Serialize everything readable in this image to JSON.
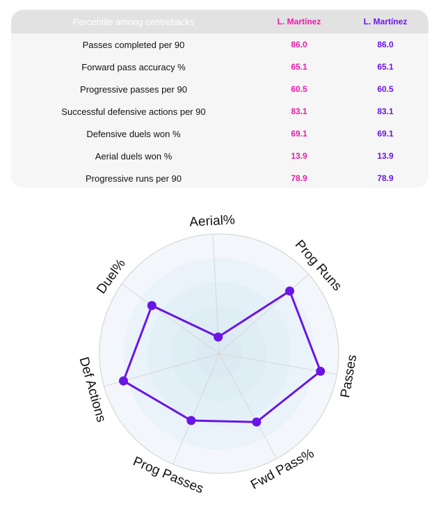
{
  "table": {
    "header_metric": "Percentile among centrebacks",
    "player1": "L. Martínez",
    "player2": "L. Martínez",
    "rows": [
      {
        "metric": "Passes completed per 90",
        "p1": "86.0",
        "p2": "86.0"
      },
      {
        "metric": "Forward pass accuracy %",
        "p1": "65.1",
        "p2": "65.1"
      },
      {
        "metric": "Progressive passes per 90",
        "p1": "60.5",
        "p2": "60.5"
      },
      {
        "metric": "Successful defensive actions per 90",
        "p1": "83.1",
        "p2": "83.1"
      },
      {
        "metric": "Defensive duels won %",
        "p1": "69.1",
        "p2": "69.1"
      },
      {
        "metric": "Aerial duels won %",
        "p1": "13.9",
        "p2": "13.9"
      },
      {
        "metric": "Progressive runs per 90",
        "p1": "78.9",
        "p2": "78.9"
      }
    ]
  },
  "colors": {
    "player1": "#e81ba8",
    "player2": "#6a14e6",
    "header_bg": "#e2e2e2",
    "card_bg": "#f6f6f6"
  },
  "chart_data": {
    "type": "radar",
    "range": [
      0,
      100
    ],
    "rings": [
      20,
      40,
      60,
      80,
      100
    ],
    "axes": [
      "Aerial%",
      "Prog Runs",
      "Passes",
      "Fwd Pass%",
      "Prog Passes",
      "Def Actions",
      "Duel%"
    ],
    "series": [
      {
        "name": "L. Martínez",
        "color": "#6a14e6",
        "values": [
          13.9,
          78.9,
          86.0,
          65.1,
          60.5,
          83.1,
          69.1
        ]
      }
    ]
  }
}
